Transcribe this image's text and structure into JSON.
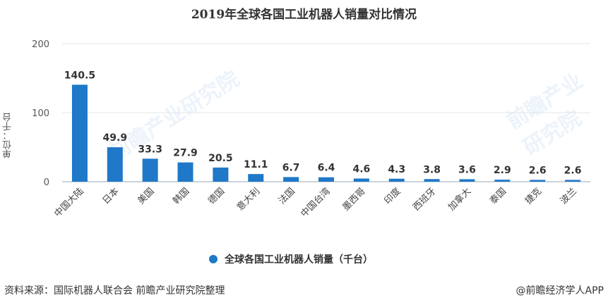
{
  "chart_data": {
    "type": "bar",
    "title": "2019年全球各国工业机器人销量对比情况",
    "ylabel": "单位：千台",
    "ylim": [
      0,
      200
    ],
    "yticks": [
      0,
      100,
      200
    ],
    "categories": [
      "中国大陆",
      "日本",
      "美国",
      "韩国",
      "德国",
      "意大利",
      "法国",
      "中国台湾",
      "墨西哥",
      "印度",
      "西班牙",
      "加拿大",
      "泰国",
      "捷克",
      "波兰"
    ],
    "series": [
      {
        "name": "全球各国工业机器人销量（千台）",
        "values": [
          140.5,
          49.9,
          33.3,
          27.9,
          20.5,
          11.1,
          6.7,
          6.4,
          4.6,
          4.3,
          3.8,
          3.6,
          2.9,
          2.6,
          2.6
        ],
        "labels": [
          "140.5",
          "49.9",
          "33.3",
          "27.9",
          "20.5",
          "11.1",
          "6.7",
          "6.4",
          "4.6",
          "4.3",
          "3.8",
          "3.6",
          "2.9",
          "2.6",
          "2.6"
        ],
        "color": "#1f78c8"
      }
    ],
    "grid": true,
    "legend_position": "bottom-center"
  },
  "footer": {
    "source": "资料来源：国际机器人联合会 前瞻产业研究院整理",
    "credit": "@前瞻经济学人APP"
  },
  "watermark": {
    "text": "前瞻产业研究院"
  }
}
